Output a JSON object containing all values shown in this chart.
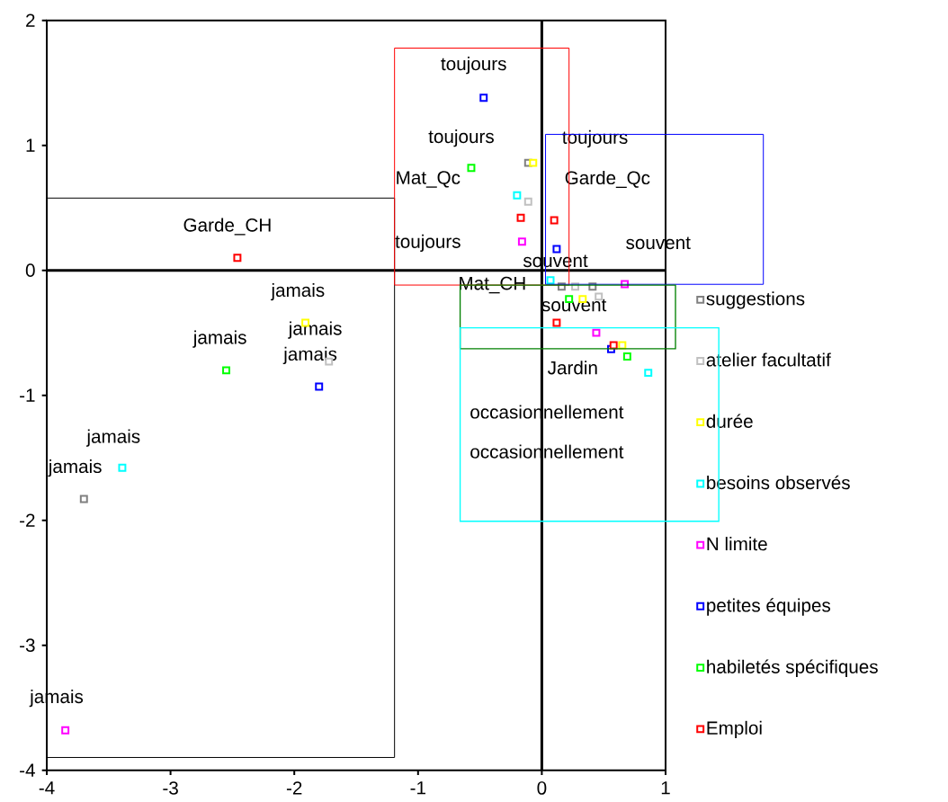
{
  "chart_data": {
    "type": "scatter",
    "marker": "square",
    "legend": "right",
    "xlim": [
      -4,
      1
    ],
    "ylim": [
      -4,
      2
    ],
    "xticks": [
      -4,
      -3,
      -2,
      -1,
      0,
      1
    ],
    "yticks": [
      -4,
      -3,
      -2,
      -1,
      0,
      1,
      2
    ],
    "series": [
      {
        "name": "suggestions",
        "color": "#808080",
        "x": [
          -0.11,
          0.16,
          0.41,
          -3.7
        ],
        "values": [
          0.86,
          -0.13,
          -0.13,
          -1.83
        ]
      },
      {
        "name": "atelier facultatif",
        "color": "#c0c0c0",
        "x": [
          -0.11,
          0.27,
          0.46,
          -1.72
        ],
        "values": [
          0.55,
          -0.13,
          -0.21,
          -0.73
        ]
      },
      {
        "name": "durée",
        "color": "#ffff00",
        "x": [
          -0.07,
          0.33,
          0.65,
          -1.91
        ],
        "values": [
          0.86,
          -0.23,
          -0.6,
          -0.42
        ]
      },
      {
        "name": "besoins observés",
        "color": "#00ffff",
        "x": [
          -0.2,
          0.07,
          0.86,
          -3.39
        ],
        "values": [
          0.6,
          -0.08,
          -0.82,
          -1.58
        ]
      },
      {
        "name": "N limite",
        "color": "#ff00ff",
        "x": [
          -0.16,
          0.67,
          0.44,
          -3.85
        ],
        "values": [
          0.23,
          -0.11,
          -0.5,
          -3.68
        ]
      },
      {
        "name": "petites équipes",
        "color": "#0000ff",
        "x": [
          -0.47,
          0.12,
          0.56,
          -1.8
        ],
        "values": [
          1.38,
          0.17,
          -0.63,
          -0.93
        ]
      },
      {
        "name": "habiletés spécifiques",
        "color": "#00ff00",
        "x": [
          -0.57,
          0.22,
          0.69,
          -2.55
        ],
        "values": [
          0.82,
          -0.23,
          -0.69,
          -0.8
        ]
      },
      {
        "name": "Emploi",
        "color": "#ff0000",
        "x": [
          -0.17,
          0.1,
          0.12,
          0.58,
          -2.46
        ],
        "values": [
          0.42,
          0.4,
          -0.42,
          -0.6,
          0.1
        ]
      }
    ],
    "annotations": [
      "toujours",
      "toujours",
      "toujours",
      "Mat_Qc",
      "Garde_Qc",
      "toujours",
      "souvent",
      "souvent",
      "Garde_CH",
      "Mat_CH",
      "souvent",
      "jamais",
      "jamais",
      "jamais",
      "jamais",
      "Jardin",
      "occasionnellement",
      "occasionnellement",
      "jamais",
      "jamais",
      "jamais"
    ]
  }
}
